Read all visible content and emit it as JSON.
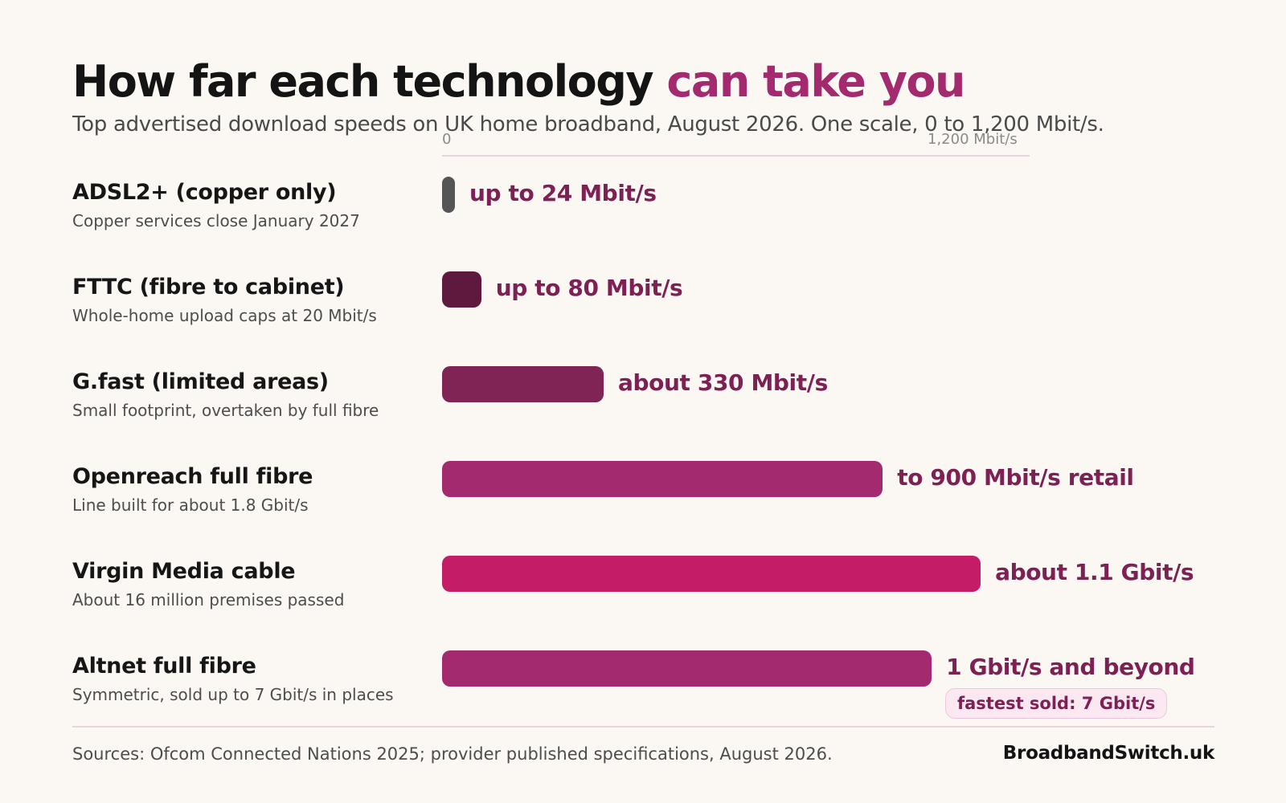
{
  "title_main": "How far each technology",
  "title_accent": "can take you",
  "subtitle": "Top advertised download speeds on UK home broadband, August 2026.  One scale, 0 to 1,200 Mbit/s.",
  "footer": {
    "sources": "Sources: Ofcom Connected Nations 2025; provider published specifications, August 2026.",
    "brand": "BroadbandSwitch.uk"
  },
  "colors": {
    "accent": "#a32a6e",
    "label": "#7d2154",
    "badge_bg": "#fce8f1"
  },
  "chart_data": {
    "type": "bar",
    "orientation": "horizontal",
    "title": "How far each technology can take you",
    "subtitle": "Top advertised download speeds on UK home broadband, August 2026.  One scale, 0 to 1,200 Mbit/s.",
    "axis": {
      "min_label": "0",
      "max_label": "1,200 Mbit/s"
    },
    "xlim": [
      0,
      1200
    ],
    "unit": "Mbit/s",
    "grid": false,
    "rows": [
      {
        "name": "ADSL2+  (copper only)",
        "note": "Copper services close January 2027",
        "value": 24,
        "label": "up to 24 Mbit/s",
        "color": "#555555"
      },
      {
        "name": "FTTC  (fibre to cabinet)",
        "note": "Whole-home upload caps at 20 Mbit/s",
        "value": 80,
        "label": "up to 80 Mbit/s",
        "color": "#5e1a3e"
      },
      {
        "name": "G.fast  (limited areas)",
        "note": "Small footprint, overtaken by full fibre",
        "value": 330,
        "label": "about 330 Mbit/s",
        "color": "#7f2455"
      },
      {
        "name": "Openreach full fibre",
        "note": "Line built for about 1.8 Gbit/s",
        "value": 900,
        "label": "to 900 Mbit/s retail",
        "color": "#a32a6e"
      },
      {
        "name": "Virgin Media cable",
        "note": "About 16 million premises passed",
        "value": 1100,
        "label": "about 1.1 Gbit/s",
        "color": "#c41c66"
      },
      {
        "name": "Altnet full fibre",
        "note": "Symmetric, sold up to 7 Gbit/s in places",
        "value": 1000,
        "label": "1 Gbit/s and beyond",
        "color": "#a32a6e",
        "badge": "fastest sold: 7 Gbit/s"
      }
    ]
  }
}
